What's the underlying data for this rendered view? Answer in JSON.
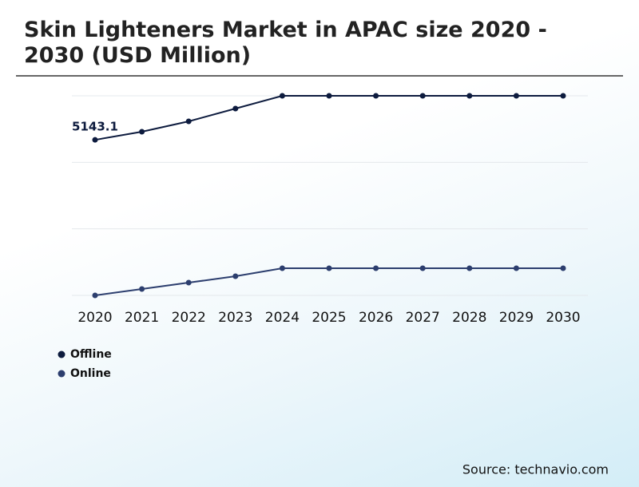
{
  "chart_data": {
    "type": "line",
    "title": "Skin Lighteners Market in APAC size 2020 - 2030 (USD Million)",
    "categories": [
      "2020",
      "2021",
      "2022",
      "2023",
      "2024",
      "2025",
      "2026",
      "2027",
      "2028",
      "2029",
      "2030"
    ],
    "series": [
      {
        "name": "Offline",
        "color": "#0d1b3e",
        "values": [
          5143.1,
          5412,
          5755,
          6178,
          6600,
          6600,
          6600,
          6600,
          6600,
          6600,
          6600
        ]
      },
      {
        "name": "Online",
        "color": "#2c3e6e",
        "values": [
          0,
          211,
          422,
          634,
          898,
          898,
          898,
          898,
          898,
          898,
          898
        ]
      }
    ],
    "data_label_index": 0,
    "ylim": [
      0,
      6600
    ],
    "yticks": [
      0,
      2200,
      4400,
      6600
    ],
    "grid": true,
    "source": "Source: technavio.com"
  }
}
